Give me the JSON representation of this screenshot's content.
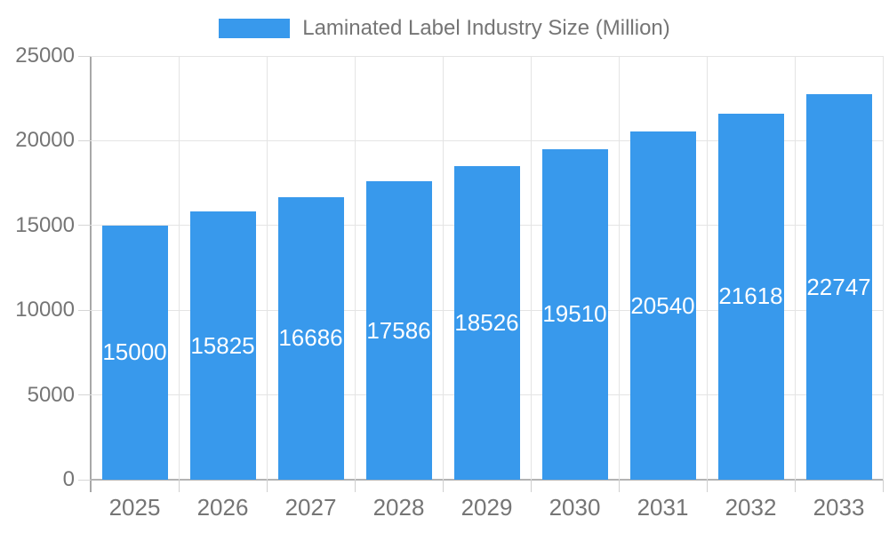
{
  "legend": {
    "label": "Laminated Label Industry Size (Million)",
    "swatch_color": "#3899EC"
  },
  "chart_data": {
    "type": "bar",
    "title": "Laminated Label Industry Size (Million)",
    "categories": [
      "2025",
      "2026",
      "2027",
      "2028",
      "2029",
      "2030",
      "2031",
      "2032",
      "2033"
    ],
    "values": [
      15000,
      15825,
      16686,
      17586,
      18526,
      19510,
      20540,
      21618,
      22747
    ],
    "xlabel": "",
    "ylabel": "",
    "ylim": [
      0,
      25000
    ],
    "yticks": [
      0,
      5000,
      10000,
      15000,
      20000,
      25000
    ],
    "grid": true,
    "legend_position": "top",
    "bar_color": "#3899EC",
    "bar_label_color": "#ffffff",
    "axis_text_color": "#757575"
  }
}
